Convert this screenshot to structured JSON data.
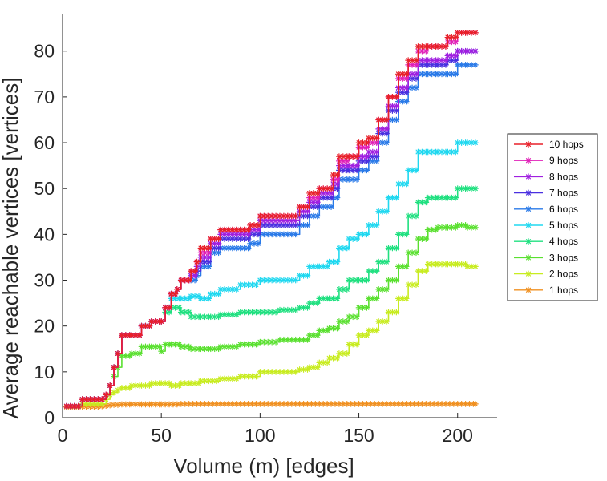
{
  "chart_data": {
    "type": "line",
    "title": "",
    "xlabel": "Volume (m) [edges]",
    "ylabel": "Average reachable vertices [vertices]",
    "xlim": [
      0,
      220
    ],
    "ylim": [
      0,
      88
    ],
    "xticks": [
      0,
      50,
      100,
      150,
      200
    ],
    "yticks": [
      0,
      10,
      20,
      30,
      40,
      50,
      60,
      70,
      80
    ],
    "xtick_labels": [
      "0",
      "50",
      "100",
      "150",
      "200"
    ],
    "ytick_labels": [
      "0",
      "10",
      "20",
      "30",
      "40",
      "50",
      "60",
      "70",
      "80"
    ],
    "grid": false,
    "legend_position": "right",
    "series": [
      {
        "name": "10 hops",
        "color": "#e8202a",
        "x": [
          2,
          10,
          20,
          22,
          24,
          26,
          28,
          30,
          35,
          40,
          45,
          50,
          52,
          55,
          58,
          60,
          65,
          68,
          70,
          75,
          80,
          90,
          95,
          100,
          110,
          118,
          120,
          125,
          130,
          137,
          140,
          145,
          150,
          155,
          160,
          165,
          170,
          175,
          180,
          185,
          190,
          195,
          200,
          205,
          209
        ],
        "y": [
          2.5,
          4,
          4,
          5,
          7,
          11,
          14,
          18,
          18,
          20,
          21,
          21,
          24,
          27,
          28,
          30,
          32,
          34,
          37,
          39,
          41,
          41,
          42,
          44,
          44,
          44,
          46,
          49,
          50,
          53,
          57,
          57,
          60,
          61,
          65,
          70,
          75,
          78,
          81,
          81,
          81,
          83,
          84,
          84,
          84
        ]
      },
      {
        "name": "9 hops",
        "color": "#e020b8",
        "x": [
          2,
          10,
          20,
          22,
          24,
          26,
          28,
          30,
          35,
          40,
          45,
          50,
          52,
          55,
          58,
          60,
          65,
          68,
          70,
          75,
          80,
          90,
          95,
          100,
          110,
          118,
          120,
          125,
          130,
          137,
          140,
          145,
          150,
          155,
          160,
          165,
          170,
          175,
          180,
          185,
          190,
          195,
          200,
          205,
          209
        ],
        "y": [
          2.5,
          4,
          4,
          5,
          7,
          11,
          14,
          18,
          18,
          20,
          21,
          21,
          24,
          27,
          28,
          30,
          32,
          34,
          36,
          39,
          41,
          41,
          42,
          44,
          44,
          44,
          46,
          48,
          50,
          52,
          56,
          57,
          59,
          60,
          65,
          70,
          74,
          77,
          80,
          81,
          81,
          82,
          84,
          84,
          84
        ]
      },
      {
        "name": "8 hops",
        "color": "#a020e0",
        "x": [
          2,
          10,
          20,
          22,
          24,
          26,
          28,
          30,
          35,
          40,
          45,
          50,
          52,
          55,
          58,
          60,
          65,
          68,
          70,
          75,
          80,
          90,
          95,
          100,
          110,
          118,
          120,
          125,
          130,
          137,
          140,
          145,
          150,
          155,
          160,
          165,
          170,
          175,
          180,
          185,
          190,
          195,
          200,
          205,
          209
        ],
        "y": [
          2.5,
          4,
          4,
          5,
          7,
          11,
          14,
          18,
          18,
          20,
          21,
          21,
          24,
          27,
          28,
          30,
          31,
          33,
          35,
          38,
          40,
          40,
          41,
          43,
          43,
          43,
          45,
          47,
          49,
          51,
          55,
          55,
          57,
          58,
          63,
          68,
          72,
          75,
          78,
          78,
          78,
          79,
          80,
          80,
          80
        ]
      },
      {
        "name": "7 hops",
        "color": "#4a30e0",
        "x": [
          2,
          10,
          20,
          22,
          24,
          26,
          28,
          30,
          35,
          40,
          45,
          50,
          52,
          55,
          58,
          60,
          65,
          68,
          70,
          75,
          80,
          90,
          95,
          100,
          110,
          118,
          120,
          125,
          130,
          137,
          140,
          145,
          150,
          155,
          160,
          165,
          170,
          175,
          180,
          185,
          190,
          195,
          200,
          205,
          209
        ],
        "y": [
          2.5,
          4,
          4,
          5,
          7,
          11,
          14,
          18,
          18,
          20,
          21,
          21,
          24,
          27,
          28,
          30,
          31,
          32,
          34,
          37,
          39,
          39,
          40,
          42,
          42,
          42,
          44,
          46,
          48,
          50,
          54,
          54,
          56,
          57,
          62,
          67,
          71,
          74,
          77,
          77,
          77,
          78,
          80,
          80,
          80
        ]
      },
      {
        "name": "6 hops",
        "color": "#2a7ae8",
        "x": [
          2,
          10,
          20,
          22,
          24,
          26,
          28,
          30,
          35,
          40,
          45,
          50,
          52,
          55,
          58,
          60,
          65,
          68,
          70,
          75,
          80,
          90,
          95,
          100,
          110,
          118,
          120,
          125,
          130,
          137,
          140,
          145,
          150,
          155,
          160,
          165,
          170,
          175,
          180,
          185,
          190,
          195,
          200,
          205,
          209
        ],
        "y": [
          2.5,
          4,
          4,
          5,
          7,
          11,
          14,
          18,
          18,
          20,
          21,
          21,
          24,
          27,
          28,
          30,
          30,
          31,
          33,
          36,
          37,
          37,
          38,
          40,
          40,
          40,
          42,
          44,
          46,
          48,
          52,
          52,
          54,
          56,
          60,
          65,
          69,
          72,
          75,
          75,
          75,
          75,
          77,
          77,
          77
        ]
      },
      {
        "name": "5 hops",
        "color": "#20d8f0",
        "x": [
          2,
          10,
          20,
          22,
          24,
          26,
          28,
          30,
          35,
          40,
          45,
          50,
          52,
          55,
          60,
          65,
          70,
          75,
          80,
          90,
          100,
          110,
          120,
          125,
          130,
          135,
          140,
          145,
          150,
          155,
          160,
          165,
          170,
          175,
          180,
          185,
          190,
          195,
          200,
          205,
          209
        ],
        "y": [
          2.5,
          4,
          4,
          5,
          7,
          11,
          14,
          18,
          18,
          20,
          21,
          21,
          24,
          26,
          26,
          26.5,
          26,
          27,
          28,
          29,
          30,
          30,
          31,
          33,
          33,
          34,
          37,
          39,
          40,
          42,
          45,
          48,
          51,
          54,
          58,
          58,
          58,
          58,
          60,
          60,
          60
        ]
      },
      {
        "name": "4 hops",
        "color": "#20e080",
        "x": [
          2,
          10,
          20,
          22,
          24,
          26,
          28,
          30,
          35,
          40,
          45,
          50,
          52,
          55,
          60,
          65,
          70,
          75,
          80,
          90,
          100,
          110,
          120,
          125,
          130,
          135,
          140,
          145,
          150,
          155,
          160,
          165,
          170,
          175,
          180,
          185,
          190,
          195,
          200,
          205,
          209
        ],
        "y": [
          2.5,
          4,
          4,
          5,
          7,
          11,
          14,
          18,
          18,
          20,
          21,
          21,
          23,
          24,
          23,
          22,
          22,
          22,
          22.5,
          23,
          23,
          23.5,
          24,
          25,
          26,
          26,
          28,
          30,
          30,
          32,
          34,
          37,
          40,
          44,
          47,
          48,
          48,
          48,
          50,
          50,
          50
        ]
      },
      {
        "name": "3 hops",
        "color": "#5ae030",
        "x": [
          2,
          10,
          20,
          22,
          24,
          26,
          28,
          30,
          35,
          40,
          45,
          50,
          52,
          55,
          60,
          65,
          70,
          75,
          80,
          90,
          100,
          110,
          120,
          125,
          130,
          135,
          140,
          145,
          150,
          155,
          160,
          165,
          170,
          175,
          180,
          185,
          190,
          195,
          200,
          205,
          209
        ],
        "y": [
          2.5,
          4,
          4,
          5,
          7,
          9,
          11,
          13.5,
          14,
          15.5,
          15.5,
          14.5,
          16,
          16,
          15.5,
          15,
          15,
          15,
          15.5,
          16,
          16.5,
          17,
          17,
          18,
          19,
          19.5,
          21,
          22,
          24,
          26,
          28,
          30,
          33,
          36,
          39,
          41,
          41.5,
          41.5,
          42,
          41.5,
          41.5
        ]
      },
      {
        "name": "2 hops",
        "color": "#c8ec20",
        "x": [
          2,
          10,
          20,
          22,
          24,
          26,
          28,
          30,
          35,
          40,
          45,
          50,
          55,
          60,
          65,
          70,
          80,
          90,
          100,
          110,
          120,
          125,
          130,
          135,
          140,
          145,
          150,
          155,
          160,
          165,
          170,
          175,
          180,
          185,
          190,
          195,
          200,
          205,
          209
        ],
        "y": [
          2.5,
          3,
          3,
          4,
          5,
          5.5,
          6,
          6.5,
          7,
          7,
          7.5,
          7.5,
          7,
          7.5,
          7.5,
          8,
          8.5,
          9,
          10,
          10,
          10.5,
          11,
          12,
          13,
          14,
          16,
          18,
          19,
          21,
          23,
          26,
          29,
          32,
          33.5,
          33.5,
          33.5,
          33.5,
          33,
          33
        ]
      },
      {
        "name": "1 hops",
        "color": "#f09020",
        "x": [
          2,
          10,
          20,
          22,
          24,
          26,
          28,
          30,
          35,
          40,
          45,
          50,
          60,
          70,
          80,
          90,
          100,
          110,
          120,
          130,
          140,
          150,
          160,
          170,
          180,
          190,
          200,
          209
        ],
        "y": [
          2.3,
          2.4,
          2.5,
          2.6,
          2.7,
          2.8,
          2.8,
          2.9,
          2.9,
          2.9,
          2.9,
          2.9,
          3,
          3,
          3,
          3,
          3,
          3,
          3,
          3,
          3,
          3,
          3,
          3,
          3,
          3,
          3,
          3
        ]
      }
    ]
  }
}
